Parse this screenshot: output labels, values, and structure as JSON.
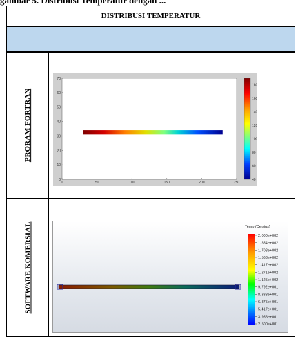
{
  "caption": "gambar 5. Distribusi Temperatur dengan ...",
  "table": {
    "title": "DISTRIBUSI TEMPERATUR",
    "rows": [
      {
        "label": "PRORAM FORTRAN"
      },
      {
        "label": "SOFTWARE KOMERSIAL"
      }
    ]
  },
  "chart_data": [
    {
      "type": "heatmap",
      "title": "",
      "xlabel": "",
      "ylabel": "",
      "xlim": [
        0,
        250
      ],
      "ylim": [
        0,
        70
      ],
      "xticks": [
        "0",
        "50",
        "100",
        "150",
        "200",
        "250"
      ],
      "yticks": [
        "0",
        "10",
        "20",
        "30",
        "40",
        "50",
        "60",
        "70"
      ],
      "bar": {
        "x": [
          30,
          230
        ],
        "y": [
          31,
          34
        ]
      },
      "colorbar": {
        "ticks": [
          "40",
          "60",
          "80",
          "100",
          "120",
          "140",
          "160",
          "180"
        ],
        "range": [
          40,
          190
        ]
      },
      "grid": false
    },
    {
      "type": "heatmap",
      "legend_title": "Temp (Celsius)",
      "legend_values": [
        "2.000e+002",
        "1.854e+002",
        "1.708e+002",
        "1.563e+002",
        "1.417e+002",
        "1.271e+002",
        "1.125e+002",
        "9.792e+001",
        "8.333e+001",
        "6.875e+001",
        "5.417e+001",
        "3.958e+001",
        "2.500e+001"
      ],
      "legend_placement": "right"
    }
  ]
}
